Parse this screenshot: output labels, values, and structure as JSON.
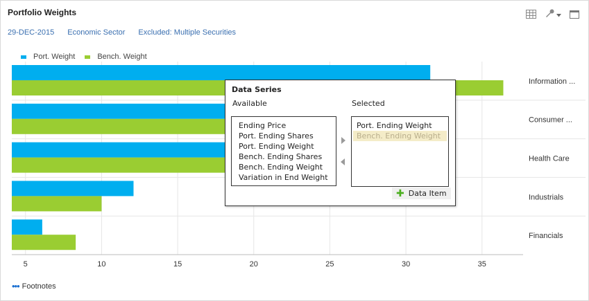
{
  "header": {
    "title": "Portfolio Weights",
    "date": "29-DEC-2015",
    "grouping": "Economic Sector",
    "excluded": "Excluded: Multiple Securities",
    "icons": [
      "grid-icon",
      "wrench-icon",
      "chevron-down-icon",
      "maximize-icon"
    ]
  },
  "legend": {
    "port_label": "Port. Weight",
    "bench_label": "Bench. Weight"
  },
  "colors": {
    "port": "#00aeef",
    "bench": "#9acd32",
    "link": "#3a6fb0"
  },
  "chart_data": {
    "type": "bar",
    "orientation": "horizontal",
    "categories": [
      "Information ...",
      "Consumer ...",
      "Health Care",
      "Industrials",
      "Financials"
    ],
    "series": [
      {
        "name": "Port. Weight",
        "values": [
          31.6,
          25.2,
          24.1,
          12.1,
          6.1
        ]
      },
      {
        "name": "Bench. Weight",
        "values": [
          36.4,
          21.1,
          18.8,
          10.0,
          8.3
        ]
      }
    ],
    "xticks": [
      5,
      10,
      15,
      20,
      25,
      30,
      35
    ],
    "xlim": [
      4.1,
      37.7
    ],
    "grid": true,
    "legend_position": "top-left"
  },
  "popup": {
    "title": "Data Series",
    "available_label": "Available",
    "selected_label": "Selected",
    "available": [
      "Ending Price",
      "Port. Ending Shares",
      "Port. Ending Weight",
      "Bench. Ending Shares",
      "Bench. Ending Weight",
      "Variation in End Weight"
    ],
    "selected": [
      "Port. Ending Weight",
      "Bench. Ending Weight"
    ],
    "data_item_label": "Data Item"
  },
  "footer": {
    "footnotes_label": "Footnotes"
  }
}
